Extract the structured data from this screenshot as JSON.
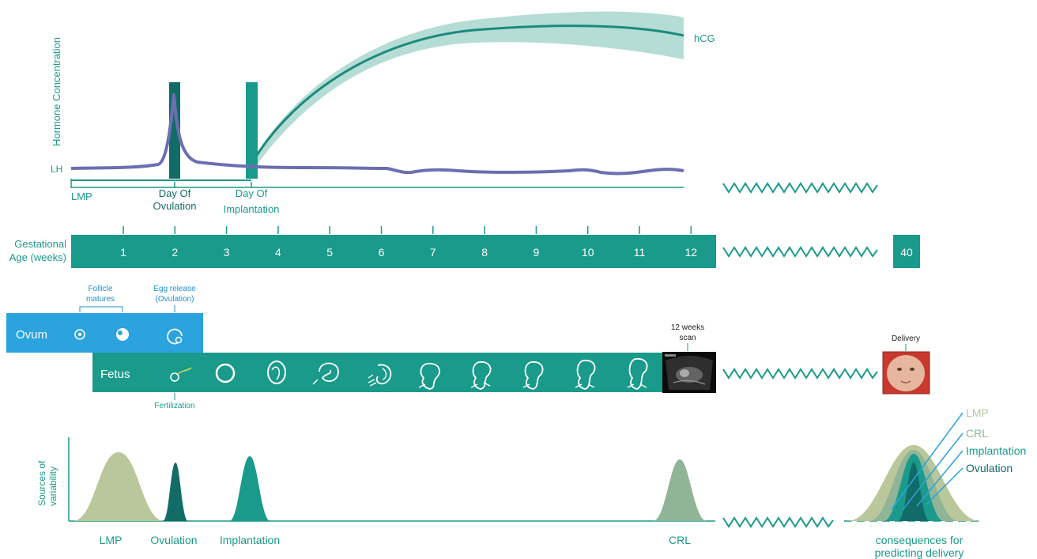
{
  "colors": {
    "teal": "#1a9a8a",
    "teal_dark": "#136b68",
    "teal_band": "#a9d6cf",
    "lh_purple": "#6b6fb0",
    "ovum_blue": "#2aa3df",
    "ovum_label_blue": "#1e8fcf",
    "sage": "#b9c79a",
    "sage_dark": "#8fb596",
    "white": "#ffffff"
  },
  "hormone_chart": {
    "ylabel": "Hormone Concentration",
    "lh_label": "LH",
    "hcg_label": "hCG",
    "markers": {
      "lmp": "LMP",
      "ovulation": [
        "Day Of",
        "Ovulation"
      ],
      "implantation": [
        "Day Of",
        "Implantation"
      ]
    }
  },
  "gestation_bar": {
    "label": [
      "Gestational",
      "Age (weeks)"
    ],
    "weeks": [
      "1",
      "2",
      "3",
      "4",
      "5",
      "6",
      "7",
      "8",
      "9",
      "10",
      "11",
      "12"
    ],
    "final_week": "40"
  },
  "ovum_bar": {
    "label": "Ovum",
    "follicle_note": [
      "Follicle",
      "matures"
    ],
    "egg_release_note": [
      "Egg release",
      "(Ovulation)"
    ],
    "icons": [
      "follicle-small-icon",
      "follicle-mature-icon",
      "egg-release-icon"
    ]
  },
  "fetus_bar": {
    "label": "Fetus",
    "fertilization_note": "Fertilization",
    "scan_note": [
      "12 weeks",
      "scan"
    ],
    "delivery_note": "Delivery",
    "icons": [
      "fertilization-icon",
      "blastocyst-icon",
      "embryo-week5-icon",
      "embryo-week6-icon",
      "embryo-week7-icon",
      "embryo-week8-icon",
      "embryo-week9-icon",
      "fetus-week10-icon",
      "fetus-week11-icon",
      "fetus-week12-icon"
    ],
    "scan_image": "ultrasound-scan-image",
    "delivery_image": "newborn-photo"
  },
  "variability": {
    "ylabel": [
      "Sources of",
      "variability"
    ],
    "curves": [
      {
        "name": "LMP",
        "color": "#b9c79a"
      },
      {
        "name": "Ovulation",
        "color": "#136b68"
      },
      {
        "name": "Implantation",
        "color": "#1a9a8a"
      },
      {
        "name": "CRL",
        "color": "#8fb596"
      }
    ],
    "combined_legend": [
      {
        "label": "LMP",
        "color": "#b9c79a"
      },
      {
        "label": "CRL",
        "color": "#8fb596"
      },
      {
        "label": "Implantation",
        "color": "#1a9a8a"
      },
      {
        "label": "Ovulation",
        "color": "#136b68"
      }
    ],
    "combined_caption": [
      "consequences for",
      "predicting delivery"
    ]
  }
}
